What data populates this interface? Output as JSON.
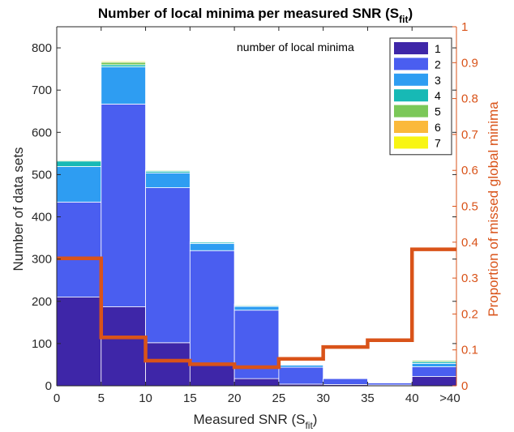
{
  "chart_data": {
    "type": "bar",
    "stacked": true,
    "title": {
      "main": "Number of local minima per measured SNR (S",
      "sub": "fit",
      "close": ")"
    },
    "xlabel": {
      "main": "Measured SNR (S",
      "sub": "fit",
      "close": ")"
    },
    "ylabel": "Number of data sets",
    "y2label": "Proportion of missed global minima",
    "annotation": "number of local minima",
    "legend_position": "top-right",
    "grid": false,
    "categories": [
      "0-5",
      "5-10",
      "10-15",
      "15-20",
      "20-25",
      "25-30",
      "30-35",
      "35-40",
      ">40"
    ],
    "xticks": [
      "0",
      "5",
      "10",
      "15",
      "20",
      "25",
      "30",
      "35",
      "40",
      ">40"
    ],
    "ylim": [
      0,
      850
    ],
    "yticks": [
      0,
      100,
      200,
      300,
      400,
      500,
      600,
      700,
      800
    ],
    "y2lim": [
      0,
      1
    ],
    "y2ticks": [
      "0",
      "0.1",
      "0.2",
      "0.3",
      "0.4",
      "0.5",
      "0.6",
      "0.7",
      "0.8",
      "0.9",
      "1"
    ],
    "series": [
      {
        "name": "1",
        "color": "#3e26a8",
        "values": [
          210,
          187,
          102,
          48,
          17,
          4,
          3,
          2,
          22
        ]
      },
      {
        "name": "2",
        "color": "#4a5ef0",
        "values": [
          225,
          480,
          367,
          272,
          162,
          40,
          14,
          5,
          23
        ]
      },
      {
        "name": "3",
        "color": "#2e9df2",
        "values": [
          84,
          88,
          35,
          17,
          9,
          5,
          1,
          1,
          8
        ]
      },
      {
        "name": "4",
        "color": "#17b9b5",
        "values": [
          13,
          5,
          4,
          3,
          2,
          1,
          0,
          0,
          4
        ]
      },
      {
        "name": "5",
        "color": "#7bc858",
        "values": [
          2,
          6,
          2,
          1,
          2,
          1,
          0,
          0,
          3
        ]
      },
      {
        "name": "6",
        "color": "#fbb93a",
        "values": [
          0,
          2,
          1,
          0,
          1,
          0,
          0,
          0,
          0
        ]
      },
      {
        "name": "7",
        "color": "#f8f513",
        "values": [
          0,
          2,
          0,
          0,
          1,
          0,
          0,
          0,
          1
        ]
      }
    ],
    "right_series": {
      "color": "#d95319",
      "values": [
        0.355,
        0.135,
        0.07,
        0.06,
        0.052,
        0.075,
        0.108,
        0.127,
        0.38
      ]
    }
  }
}
